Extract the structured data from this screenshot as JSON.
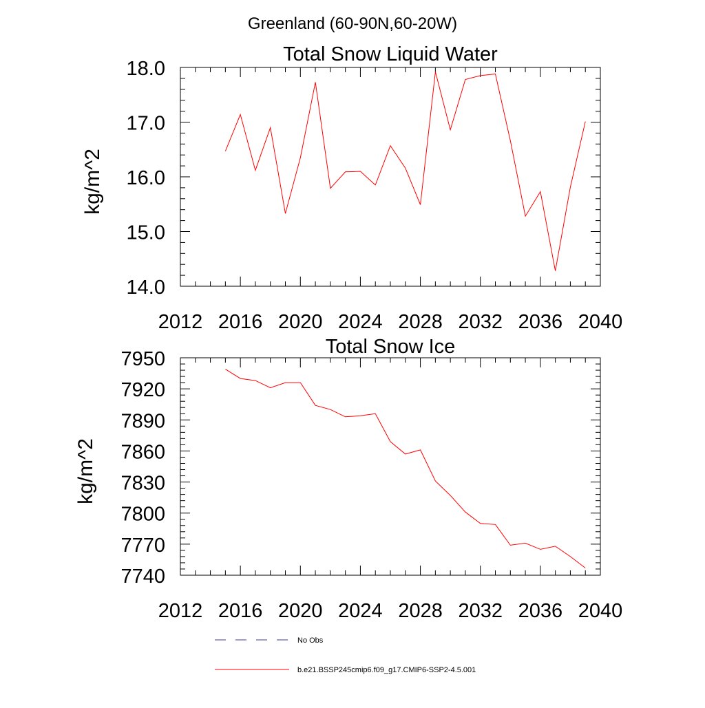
{
  "main_title": "Greenland (60-90N,60-20W)",
  "chart_data": [
    {
      "type": "line",
      "title": "Total Snow Liquid Water",
      "xlabel": "",
      "ylabel": "kg/m^2",
      "xlim": [
        2012,
        2040
      ],
      "ylim": [
        14.0,
        18.0
      ],
      "xticks": [
        "2012",
        "2016",
        "2020",
        "2024",
        "2028",
        "2032",
        "2036",
        "2040"
      ],
      "yticks": [
        "14.0",
        "15.0",
        "16.0",
        "17.0",
        "18.0"
      ],
      "grid": false,
      "series": [
        {
          "name": "b.e21.BSSP245cmip6.f09_g17.CMIP6-SSP2-4.5.001",
          "color": "#ff0000",
          "x": [
            2015,
            2016,
            2017,
            2018,
            2019,
            2020,
            2021,
            2022,
            2023,
            2024,
            2025,
            2026,
            2027,
            2028,
            2029,
            2030,
            2031,
            2032,
            2033,
            2034,
            2035,
            2036,
            2037,
            2038,
            2039
          ],
          "y": [
            16.47,
            17.14,
            16.12,
            16.9,
            15.33,
            16.35,
            17.73,
            15.79,
            16.09,
            16.1,
            15.85,
            16.57,
            16.16,
            15.49,
            17.92,
            16.86,
            17.78,
            17.85,
            17.88,
            16.66,
            15.28,
            15.73,
            14.28,
            15.81,
            17.01
          ]
        }
      ]
    },
    {
      "type": "line",
      "title": "Total Snow Ice",
      "xlabel": "",
      "ylabel": "kg/m^2",
      "xlim": [
        2012,
        2040
      ],
      "ylim": [
        7740,
        7950
      ],
      "xticks": [
        "2012",
        "2016",
        "2020",
        "2024",
        "2028",
        "2032",
        "2036",
        "2040"
      ],
      "yticks": [
        "7740",
        "7770",
        "7800",
        "7830",
        "7860",
        "7890",
        "7920",
        "7950"
      ],
      "grid": false,
      "series": [
        {
          "name": "b.e21.BSSP245cmip6.f09_g17.CMIP6-SSP2-4.5.001",
          "color": "#ff0000",
          "x": [
            2015,
            2016,
            2017,
            2018,
            2019,
            2020,
            2021,
            2022,
            2023,
            2024,
            2025,
            2026,
            2027,
            2028,
            2029,
            2030,
            2031,
            2032,
            2033,
            2034,
            2035,
            2036,
            2037,
            2038,
            2039
          ],
          "y": [
            7939,
            7930,
            7928,
            7921,
            7926,
            7926,
            7904,
            7900,
            7893,
            7894,
            7896,
            7869,
            7857,
            7861,
            7831,
            7817,
            7801,
            7790,
            7789,
            7769,
            7771,
            7765,
            7768,
            7758,
            7747
          ]
        }
      ]
    }
  ],
  "legend": [
    {
      "label": "No Obs",
      "color": "#3b3b8f",
      "style": "dashed"
    },
    {
      "label": "b.e21.BSSP245cmip6.f09_g17.CMIP6-SSP2-4.5.001",
      "color": "#ff0000",
      "style": "solid"
    }
  ]
}
